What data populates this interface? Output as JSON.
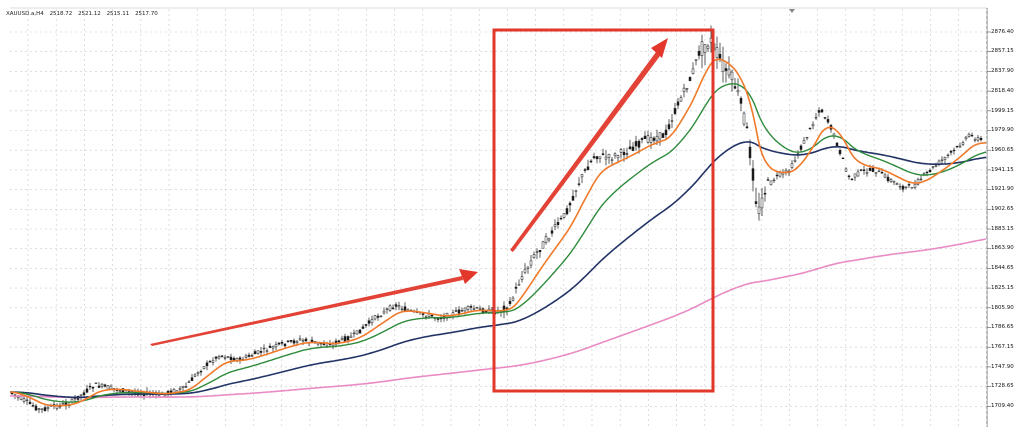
{
  "header": {
    "symbol": "XAUUSD.a,H4",
    "open": "2518.72",
    "high": "2521.12",
    "low": "2515.11",
    "close": "2517.70"
  },
  "price_axis": {
    "labels": [
      "2876.40",
      "2857.15",
      "2837.90",
      "2818.40",
      "1999.15",
      "1979.90",
      "1960.65",
      "1941.15",
      "1921.90",
      "1902.65",
      "1883.15",
      "1863.90",
      "1844.65",
      "1825.15",
      "1805.90",
      "1786.65",
      "1767.15",
      "1747.90",
      "1728.65",
      "1709.40"
    ]
  },
  "colors": {
    "background": "#ffffff",
    "grid": "#c9c9c9",
    "candle": "#1a1a1a",
    "ma_fast": "#f07a2a",
    "ma_medium": "#2e8b3c",
    "ma_slow": "#223366",
    "ma_long": "#e98bc4",
    "annotation": "#e2382b"
  },
  "indicators": [
    "ma-fast",
    "ma-medium",
    "ma-slow",
    "ma-long"
  ],
  "annotations": [
    {
      "type": "trend-arrow",
      "label": "gentle uptrend arrow"
    },
    {
      "type": "highlight-rectangle",
      "label": "strong rally box"
    },
    {
      "type": "trend-arrow",
      "label": "steep uptrend arrow"
    }
  ]
}
